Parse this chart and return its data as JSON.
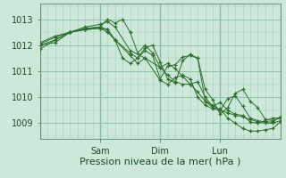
{
  "background_color": "#cce8d8",
  "plot_bg_color": "#cce8d8",
  "line_color": "#2d6e2d",
  "marker_color": "#2d6e2d",
  "grid_color_minor": "#aaccc0",
  "grid_color_major": "#88bbaa",
  "xlabel": "Pression niveau de la mer( hPa )",
  "ylabel_ticks": [
    1009,
    1010,
    1011,
    1012,
    1013
  ],
  "ylim": [
    1008.4,
    1013.6
  ],
  "xlim": [
    0,
    96
  ],
  "day_ticks": [
    24,
    48,
    72
  ],
  "day_labels": [
    "Sam",
    "Dim",
    "Lun"
  ],
  "series": [
    [
      0,
      1012.0,
      6,
      1012.1,
      12,
      1012.5,
      18,
      1012.6,
      24,
      1012.7,
      27,
      1013.0,
      30,
      1012.85,
      33,
      1013.0,
      36,
      1012.5,
      39,
      1011.7,
      42,
      1012.0,
      45,
      1011.7,
      48,
      1011.15,
      51,
      1010.85,
      54,
      1010.6,
      57,
      1010.5,
      60,
      1010.5,
      63,
      1010.2,
      66,
      1009.85,
      69,
      1009.6,
      72,
      1009.55,
      75,
      1009.2,
      78,
      1009.0,
      81,
      1008.8,
      84,
      1008.7,
      87,
      1008.7,
      90,
      1008.75,
      93,
      1008.8,
      96,
      1009.05
    ],
    [
      0,
      1012.0,
      6,
      1012.2,
      12,
      1012.5,
      18,
      1012.7,
      24,
      1012.8,
      27,
      1012.9,
      30,
      1012.7,
      36,
      1011.8,
      42,
      1011.5,
      48,
      1011.15,
      51,
      1011.3,
      54,
      1011.1,
      57,
      1010.8,
      60,
      1010.5,
      63,
      1010.6,
      66,
      1010.0,
      69,
      1009.65,
      72,
      1009.8,
      75,
      1009.5,
      78,
      1009.35,
      81,
      1009.3,
      84,
      1009.05,
      87,
      1009.0,
      90,
      1009.1,
      93,
      1009.2,
      96,
      1009.2
    ],
    [
      0,
      1011.85,
      6,
      1012.2,
      12,
      1012.5,
      18,
      1012.65,
      24,
      1012.7,
      27,
      1012.6,
      30,
      1012.2,
      33,
      1011.5,
      36,
      1011.3,
      39,
      1011.5,
      42,
      1011.8,
      45,
      1011.6,
      48,
      1010.7,
      51,
      1011.2,
      54,
      1011.25,
      57,
      1011.55,
      60,
      1011.6,
      63,
      1011.5,
      66,
      1010.3,
      69,
      1009.9,
      72,
      1009.35,
      75,
      1009.6,
      78,
      1010.15,
      81,
      1010.3,
      84,
      1009.85,
      87,
      1009.6,
      90,
      1009.15,
      93,
      1009.1,
      96,
      1009.2
    ],
    [
      0,
      1012.05,
      6,
      1012.3,
      12,
      1012.5,
      18,
      1012.6,
      24,
      1012.65,
      27,
      1012.5,
      30,
      1012.2,
      36,
      1011.7,
      39,
      1011.5,
      42,
      1011.9,
      45,
      1012.0,
      48,
      1011.35,
      51,
      1010.7,
      54,
      1010.55,
      57,
      1011.4,
      60,
      1011.65,
      63,
      1011.5,
      66,
      1009.85,
      69,
      1009.7,
      72,
      1009.5,
      75,
      1009.95,
      78,
      1010.05,
      81,
      1009.65,
      84,
      1009.2,
      87,
      1009.1,
      90,
      1009.05,
      93,
      1009.05,
      96,
      1009.25
    ],
    [
      0,
      1012.1,
      6,
      1012.35,
      12,
      1012.5,
      18,
      1012.6,
      24,
      1012.65,
      27,
      1012.6,
      30,
      1012.2,
      36,
      1011.6,
      39,
      1011.3,
      42,
      1011.5,
      48,
      1010.65,
      51,
      1010.5,
      54,
      1010.75,
      57,
      1010.85,
      60,
      1010.7,
      63,
      1010.0,
      66,
      1009.7,
      69,
      1009.55,
      72,
      1009.5,
      75,
      1009.4,
      78,
      1009.3,
      81,
      1009.25,
      84,
      1009.15,
      87,
      1009.05,
      90,
      1009.0,
      93,
      1009.0,
      96,
      1009.1
    ]
  ]
}
